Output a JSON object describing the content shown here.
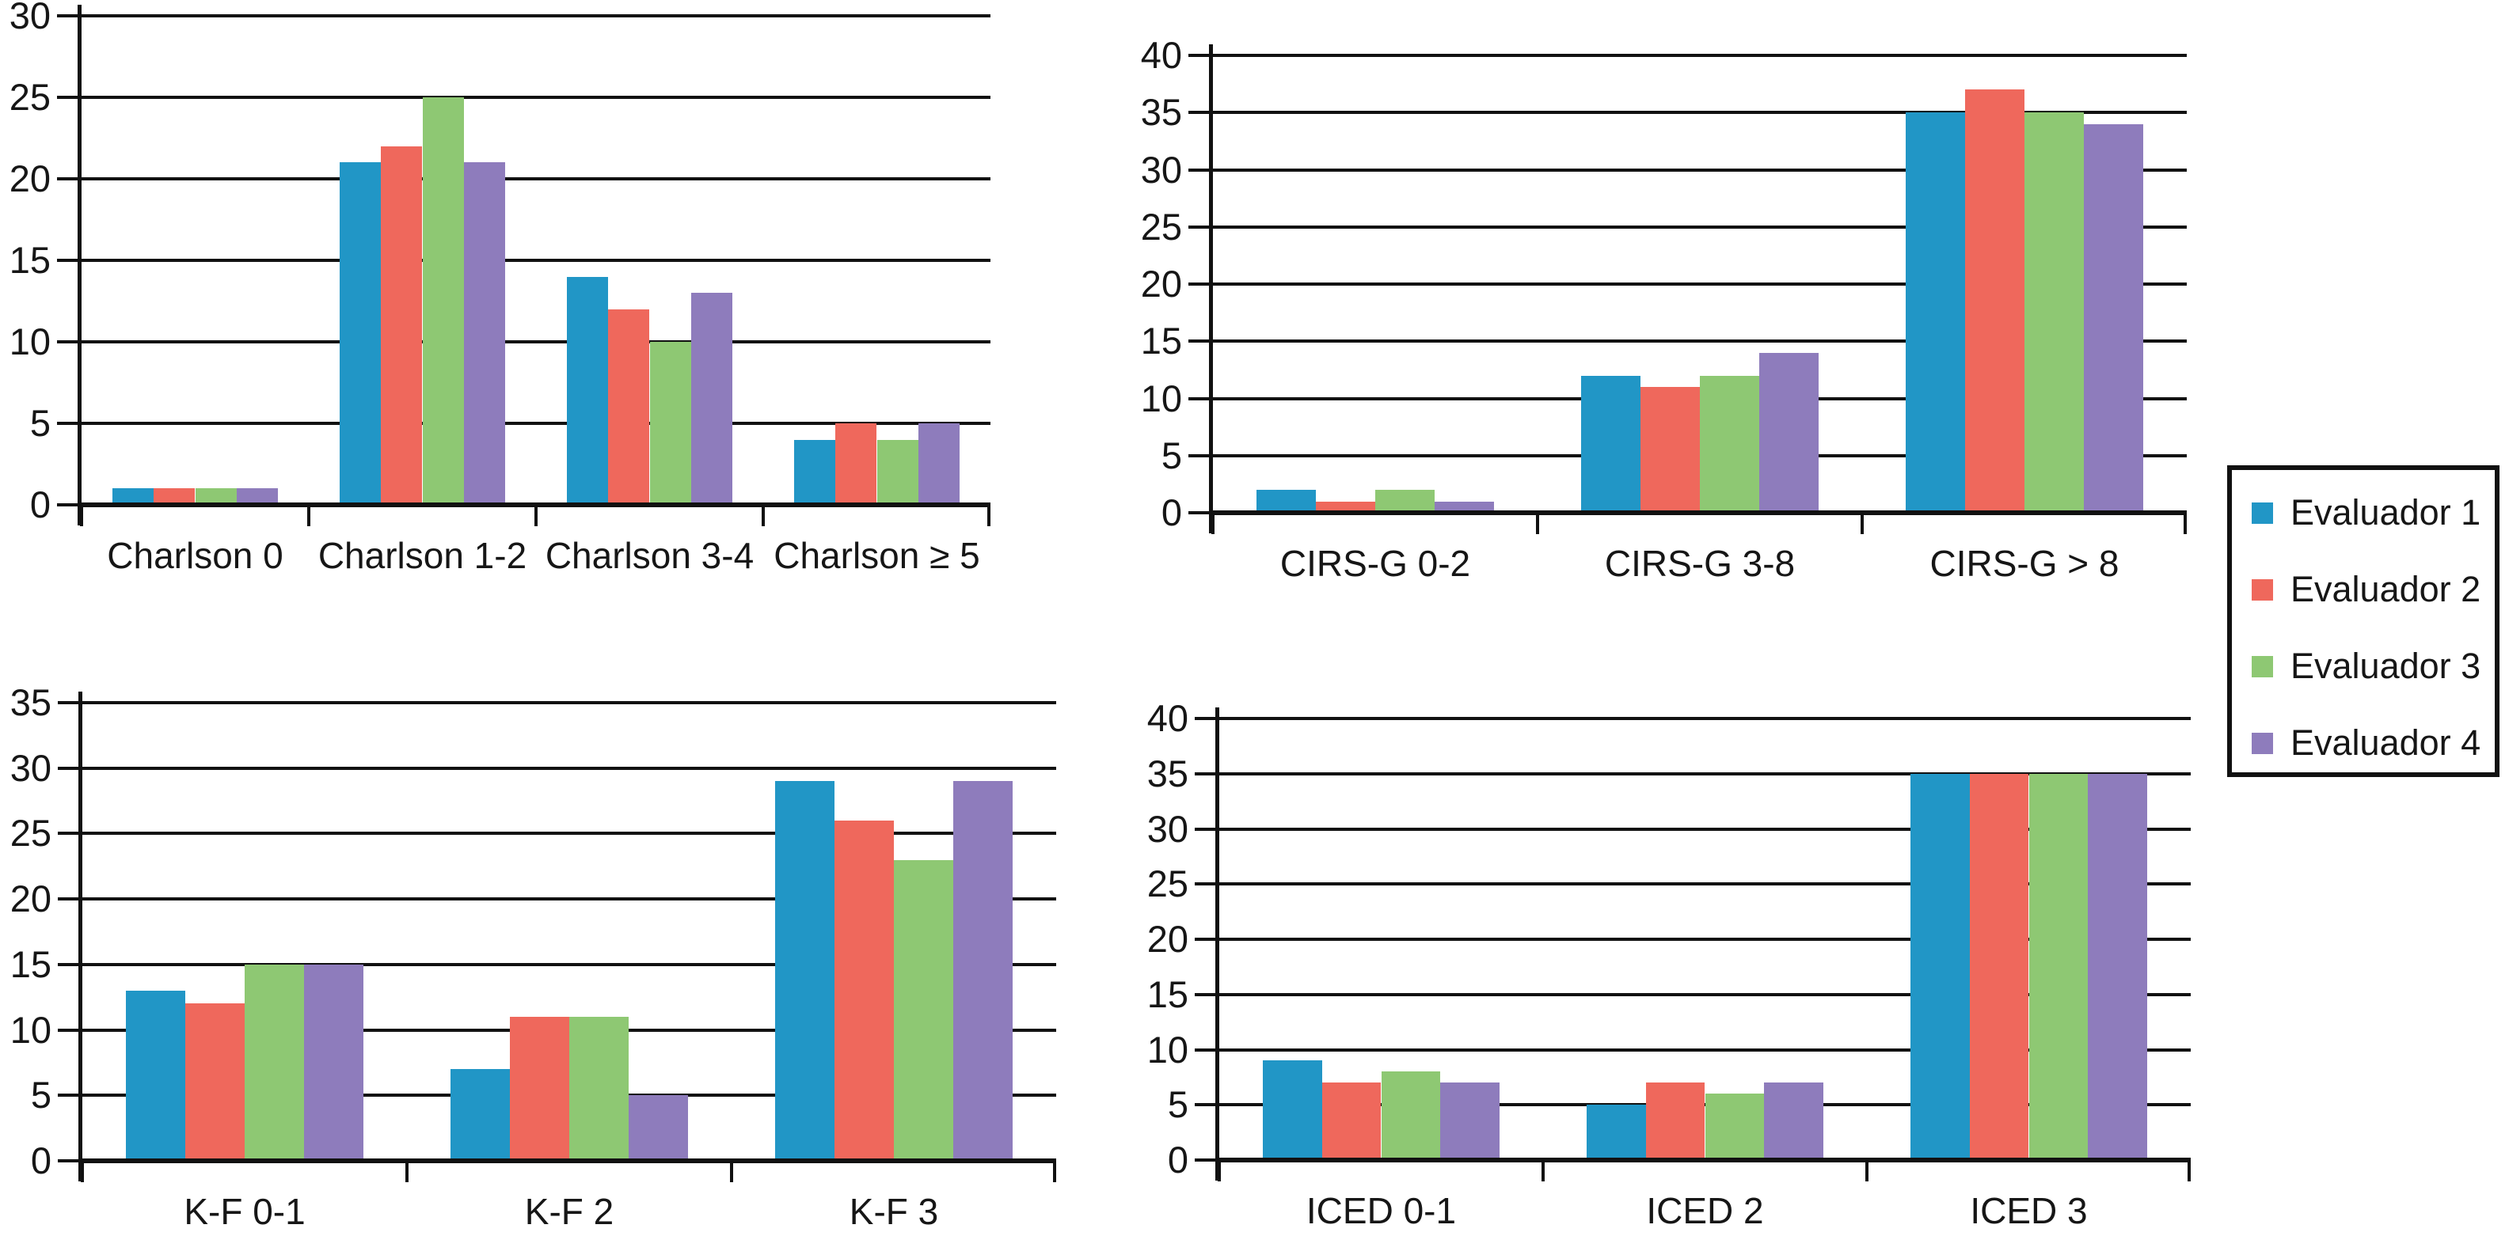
{
  "figure": {
    "background": "#ffffff",
    "text_color": "#161616",
    "line_color": "#111111"
  },
  "legend": {
    "position": "middle-right",
    "border_color": "#111111",
    "items": [
      {
        "label": "Evaluador 1",
        "color": "#2196C6"
      },
      {
        "label": "Evaluador 2",
        "color": "#EF685C"
      },
      {
        "label": "Evaluador 3",
        "color": "#8EC873"
      },
      {
        "label": "Evaluador 4",
        "color": "#8E7CBC"
      }
    ]
  },
  "chart_data": [
    {
      "id": "charlson",
      "type": "bar",
      "title": "",
      "categories": [
        "Charlson 0",
        "Charlson 1-2",
        "Charlson 3-4",
        "Charlson ≥ 5"
      ],
      "series": [
        {
          "name": "Evaluador 1",
          "color": "#2196C6",
          "values": [
            1,
            21,
            14,
            4
          ]
        },
        {
          "name": "Evaluador 2",
          "color": "#EF685C",
          "values": [
            1,
            22,
            12,
            5
          ]
        },
        {
          "name": "Evaluador 3",
          "color": "#8EC873",
          "values": [
            1,
            25,
            10,
            4
          ]
        },
        {
          "name": "Evaluador 4",
          "color": "#8E7CBC",
          "values": [
            1,
            21,
            13,
            5
          ]
        }
      ],
      "xlabel": "",
      "ylabel": "",
      "ylim": [
        0,
        30
      ],
      "ytick_step": 5,
      "yticklabels": [
        "0",
        "5",
        "10",
        "15",
        "20",
        "25",
        "30"
      ],
      "grid": true,
      "legend_position": "shared-right"
    },
    {
      "id": "cirs-g",
      "type": "bar",
      "title": "",
      "categories": [
        "CIRS-G 0-2",
        "CIRS-G 3-8",
        "CIRS-G > 8"
      ],
      "series": [
        {
          "name": "Evaluador 1",
          "color": "#2196C6",
          "values": [
            2,
            12,
            35
          ]
        },
        {
          "name": "Evaluador 2",
          "color": "#EF685C",
          "values": [
            1,
            11,
            37
          ]
        },
        {
          "name": "Evaluador 3",
          "color": "#8EC873",
          "values": [
            2,
            12,
            35
          ]
        },
        {
          "name": "Evaluador 4",
          "color": "#8E7CBC",
          "values": [
            1,
            14,
            34
          ]
        }
      ],
      "xlabel": "",
      "ylabel": "",
      "ylim": [
        0,
        40
      ],
      "ytick_step": 5,
      "yticklabels": [
        "0",
        "5",
        "10",
        "15",
        "20",
        "25",
        "30",
        "35",
        "40"
      ],
      "grid": true,
      "legend_position": "shared-right"
    },
    {
      "id": "k-f",
      "type": "bar",
      "title": "",
      "categories": [
        "K-F 0-1",
        "K-F 2",
        "K-F 3"
      ],
      "series": [
        {
          "name": "Evaluador 1",
          "color": "#2196C6",
          "values": [
            13,
            7,
            29
          ]
        },
        {
          "name": "Evaluador 2",
          "color": "#EF685C",
          "values": [
            12,
            11,
            26
          ]
        },
        {
          "name": "Evaluador 3",
          "color": "#8EC873",
          "values": [
            15,
            11,
            23
          ]
        },
        {
          "name": "Evaluador 4",
          "color": "#8E7CBC",
          "values": [
            15,
            5,
            29
          ]
        }
      ],
      "xlabel": "",
      "ylabel": "",
      "ylim": [
        0,
        35
      ],
      "ytick_step": 5,
      "yticklabels": [
        "0",
        "5",
        "10",
        "15",
        "20",
        "25",
        "30",
        "35"
      ],
      "grid": true,
      "legend_position": "shared-right"
    },
    {
      "id": "iced",
      "type": "bar",
      "title": "",
      "categories": [
        "ICED 0-1",
        "ICED 2",
        "ICED 3"
      ],
      "series": [
        {
          "name": "Evaluador 1",
          "color": "#2196C6",
          "values": [
            9,
            5,
            35
          ]
        },
        {
          "name": "Evaluador 2",
          "color": "#EF685C",
          "values": [
            7,
            7,
            35
          ]
        },
        {
          "name": "Evaluador 3",
          "color": "#8EC873",
          "values": [
            8,
            6,
            35
          ]
        },
        {
          "name": "Evaluador 4",
          "color": "#8E7CBC",
          "values": [
            7,
            7,
            35
          ]
        }
      ],
      "xlabel": "",
      "ylabel": "",
      "ylim": [
        0,
        40
      ],
      "ytick_step": 5,
      "yticklabels": [
        "0",
        "5",
        "10",
        "15",
        "20",
        "25",
        "30",
        "35",
        "40"
      ],
      "grid": true,
      "legend_position": "shared-right"
    }
  ]
}
